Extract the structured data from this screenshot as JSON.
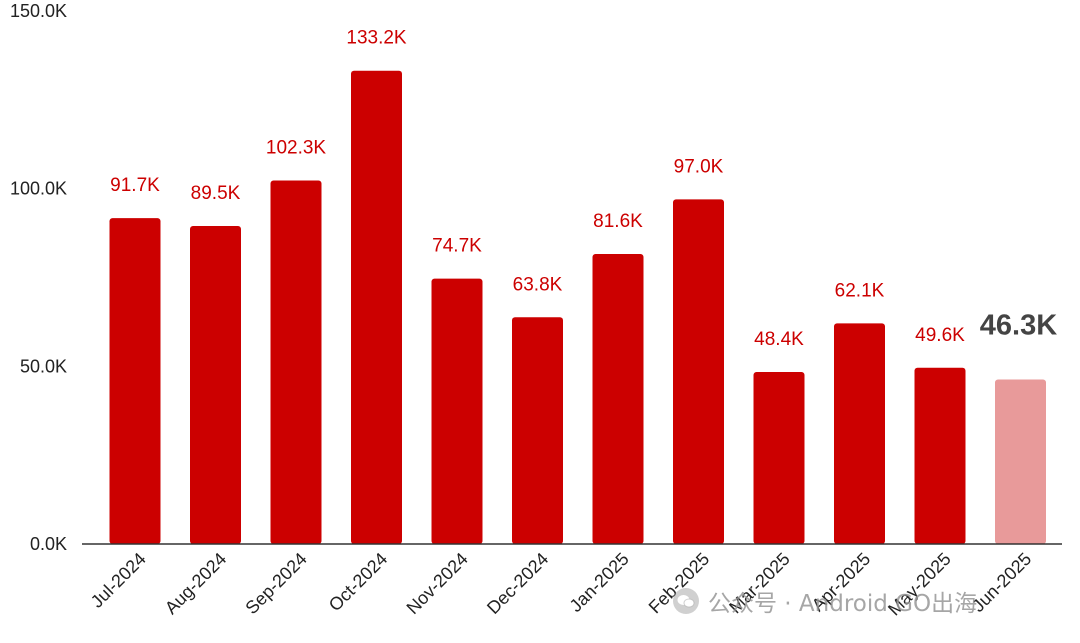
{
  "chart_data": {
    "type": "bar",
    "categories": [
      "Jul-2024",
      "Aug-2024",
      "Sep-2024",
      "Oct-2024",
      "Nov-2024",
      "Dec-2024",
      "Jan-2025",
      "Feb-2025",
      "Mar-2025",
      "Apr-2025",
      "May-2025",
      "Jun-2025"
    ],
    "values": [
      91.7,
      89.5,
      102.3,
      133.2,
      74.7,
      63.8,
      81.6,
      97.0,
      48.4,
      62.1,
      49.6,
      46.3
    ],
    "data_labels": [
      "91.7K",
      "89.5K",
      "102.3K",
      "133.2K",
      "74.7K",
      "63.8K",
      "81.6K",
      "97.0K",
      "48.4K",
      "62.1K",
      "49.6K",
      "46.3K"
    ],
    "y_ticks": [
      0,
      50,
      100,
      150
    ],
    "y_tick_labels": [
      "0.0K",
      "50.0K",
      "100.0K",
      "150.0K"
    ],
    "ylim": [
      0,
      150
    ],
    "grid": false,
    "legend": "none",
    "highlight_index": 11,
    "colors": {
      "bar": "#cc0000",
      "highlight_bar": "#e89a9a",
      "label": "#cc0000",
      "highlight_label": "#444444"
    }
  },
  "watermark": {
    "text": "公众号 · Android GO出海",
    "icon": "wechat-icon"
  }
}
